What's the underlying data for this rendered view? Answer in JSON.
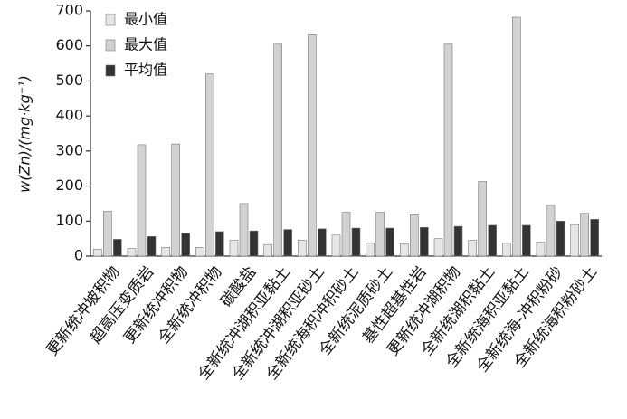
{
  "chart_data": {
    "type": "bar",
    "y_label": "w(Zn)/(mg·kg⁻¹)",
    "categories": [
      "更新统冲坡积物",
      "超高压变质岩",
      "更新统冲积物",
      "全新统冲积物",
      "碳酸盐",
      "全新统冲湖积亚黏土",
      "全新统冲湖积亚砂土",
      "全新统海积冲积砂土",
      "全新统泥质砂土",
      "基性超基性岩",
      "更新统冲湖积物",
      "全新统湖积黏土",
      "全新统海积亚黏土",
      "全新统海-冲积粉砂",
      "全新统海积粉砂土"
    ],
    "series": [
      {
        "name": "最小值",
        "color": "#e6e6e6",
        "values": [
          20,
          22,
          25,
          25,
          45,
          33,
          45,
          60,
          38,
          35,
          50,
          45,
          38,
          40,
          90
        ]
      },
      {
        "name": "最大值",
        "color": "#d2d2d2",
        "values": [
          128,
          318,
          320,
          520,
          150,
          605,
          632,
          125,
          125,
          118,
          605,
          213,
          682,
          145,
          122
        ]
      },
      {
        "name": "平均值",
        "color": "#333333",
        "values": [
          48,
          56,
          65,
          70,
          72,
          76,
          78,
          80,
          80,
          82,
          85,
          88,
          88,
          100,
          105
        ]
      }
    ],
    "ylim": [
      0,
      700
    ],
    "yticks": [
      0,
      100,
      200,
      300,
      400,
      500,
      600,
      700
    ],
    "legend": "upper-left"
  }
}
